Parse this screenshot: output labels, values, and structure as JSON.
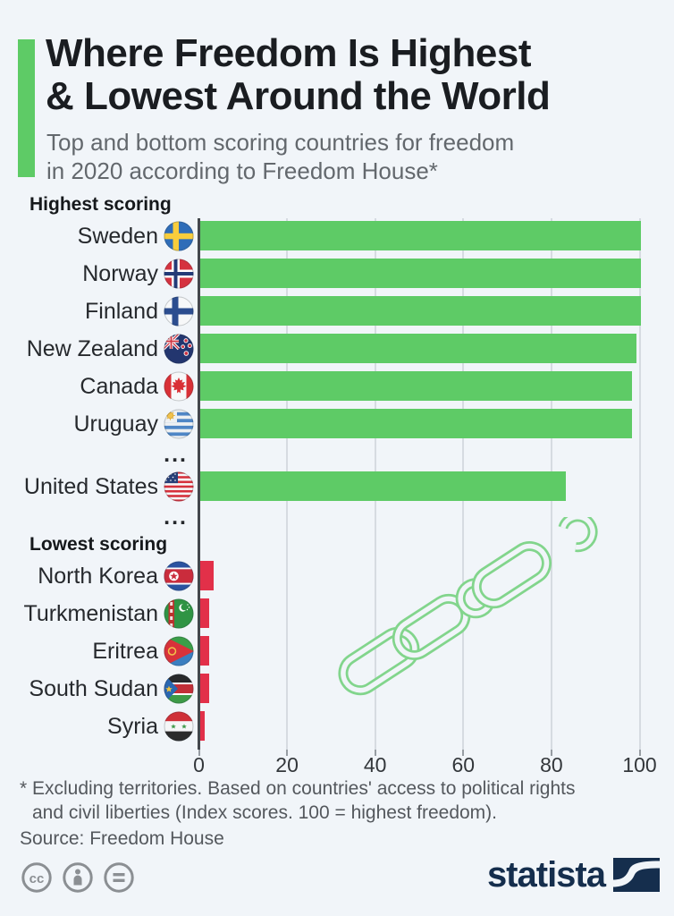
{
  "header": {
    "title_line1": "Where Freedom Is Highest",
    "title_line2": "& Lowest Around the World",
    "subtitle_line1": "Top and bottom scoring countries for freedom",
    "subtitle_line2": "in 2020 according to Freedom House*"
  },
  "chart_data": {
    "type": "bar",
    "orientation": "horizontal",
    "title": "Where Freedom Is Highest & Lowest Around the World",
    "xlim": [
      0,
      100
    ],
    "x_ticks": [
      0,
      20,
      40,
      60,
      80,
      100
    ],
    "grid": true,
    "colors": {
      "highest": "#5ecb66",
      "lowest": "#e23049"
    },
    "rows": [
      {
        "type": "section",
        "label": "Highest scoring"
      },
      {
        "type": "bar",
        "label": "Sweden",
        "flag": "sweden-flag",
        "value": 100,
        "group": "highest"
      },
      {
        "type": "bar",
        "label": "Norway",
        "flag": "norway-flag",
        "value": 100,
        "group": "highest"
      },
      {
        "type": "bar",
        "label": "Finland",
        "flag": "finland-flag",
        "value": 100,
        "group": "highest"
      },
      {
        "type": "bar",
        "label": "New Zealand",
        "flag": "new-zealand-flag",
        "value": 99,
        "group": "highest"
      },
      {
        "type": "bar",
        "label": "Canada",
        "flag": "canada-flag",
        "value": 98,
        "group": "highest"
      },
      {
        "type": "bar",
        "label": "Uruguay",
        "flag": "uruguay-flag",
        "value": 98,
        "group": "highest"
      },
      {
        "type": "ellipsis",
        "label": "..."
      },
      {
        "type": "bar",
        "label": "United States",
        "flag": "united-states-flag",
        "value": 83,
        "group": "highest"
      },
      {
        "type": "ellipsis",
        "label": "..."
      },
      {
        "type": "section",
        "label": "Lowest scoring"
      },
      {
        "type": "bar",
        "label": "North Korea",
        "flag": "north-korea-flag",
        "value": 3,
        "group": "lowest"
      },
      {
        "type": "bar",
        "label": "Turkmenistan",
        "flag": "turkmenistan-flag",
        "value": 2,
        "group": "lowest"
      },
      {
        "type": "bar",
        "label": "Eritrea",
        "flag": "eritrea-flag",
        "value": 2,
        "group": "lowest"
      },
      {
        "type": "bar",
        "label": "South Sudan",
        "flag": "south-sudan-flag",
        "value": 2,
        "group": "lowest"
      },
      {
        "type": "bar",
        "label": "Syria",
        "flag": "syria-flag",
        "value": 1,
        "group": "lowest"
      }
    ]
  },
  "footnote": {
    "line1": "* Excluding territories. Based on countries' access to political rights",
    "line2": "and civil liberties (Index scores. 100 = highest freedom).",
    "source": "Source: Freedom House"
  },
  "footer": {
    "license_icons": [
      "cc-icon",
      "attribution-icon",
      "equals-icon"
    ],
    "brand": "statista"
  }
}
